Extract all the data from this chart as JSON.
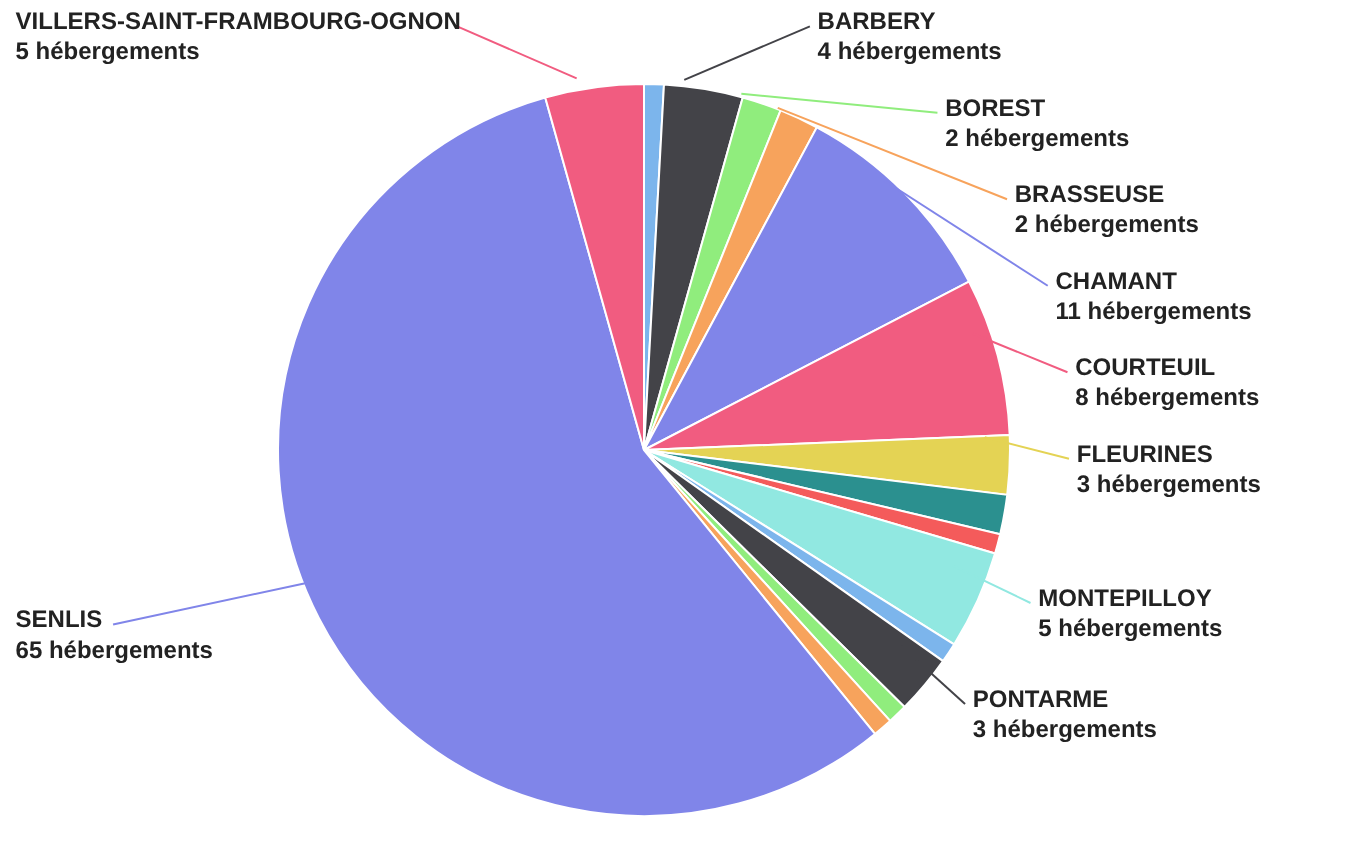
{
  "chart_data": {
    "type": "pie",
    "categories": [
      null,
      "BARBERY",
      "BOREST",
      "BRASSEUSE",
      "CHAMANT",
      "COURTEUIL",
      "FLEURINES",
      null,
      null,
      "MONTEPILLOY",
      null,
      "PONTARME",
      null,
      null,
      "SENLIS",
      "VILLERS-SAINT-FRAMBOURG-OGNON"
    ],
    "values": [
      1,
      4,
      2,
      2,
      11,
      8,
      3,
      2,
      1,
      5,
      1,
      3,
      1,
      1,
      65,
      5
    ],
    "value_labels": [
      null,
      "4 hébergements",
      "2 hébergements",
      "2 hébergements",
      "11 hébergements",
      "8 hébergements",
      "3 hébergements",
      null,
      null,
      "5 hébergements",
      null,
      "3 hébergements",
      null,
      null,
      "65 hébergements",
      "5 hébergements"
    ],
    "colors": [
      "#7cb5ec",
      "#434348",
      "#90ed7d",
      "#f7a35c",
      "#8085e9",
      "#f15c80",
      "#e4d354",
      "#2b908f",
      "#f45b5b",
      "#91e8e1",
      "#7cb5ec",
      "#434348",
      "#90ed7d",
      "#f7a35c",
      "#8085e9",
      "#f15c80"
    ]
  }
}
